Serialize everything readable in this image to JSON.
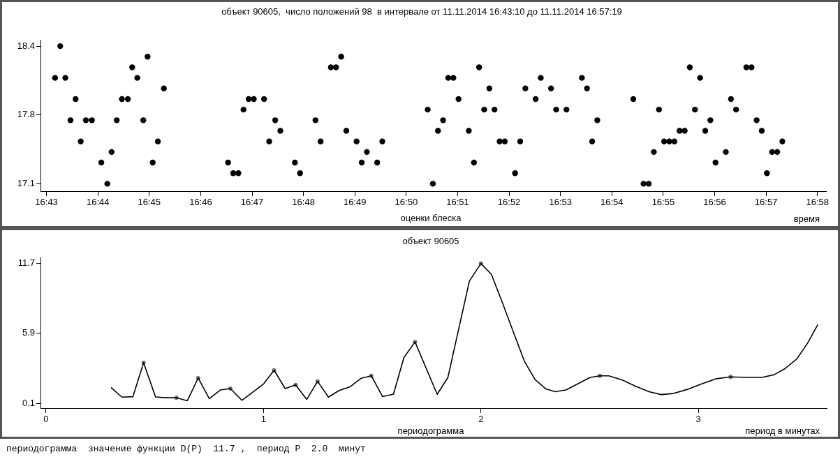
{
  "chart_data": [
    {
      "type": "scatter",
      "title": "объект 90605,  число положений 98  в интервале от 11.11.2014 16:43:10 до 11.11.2014 16:57:19",
      "xlabel": "время",
      "annotations": [
        "оценки блеска"
      ],
      "color": "#000000",
      "marker": "circle",
      "x": [
        "2014-11-11T16:43:10",
        "2014-11-11T16:43:16",
        "2014-11-11T16:43:22",
        "2014-11-11T16:43:28",
        "2014-11-11T16:43:34",
        "2014-11-11T16:43:40",
        "2014-11-11T16:43:46",
        "2014-11-11T16:43:53",
        "2014-11-11T16:44:04",
        "2014-11-11T16:44:11",
        "2014-11-11T16:44:16",
        "2014-11-11T16:44:22",
        "2014-11-11T16:44:28",
        "2014-11-11T16:44:35",
        "2014-11-11T16:44:40",
        "2014-11-11T16:44:46",
        "2014-11-11T16:44:53",
        "2014-11-11T16:44:58",
        "2014-11-11T16:45:04",
        "2014-11-11T16:45:10",
        "2014-11-11T16:45:17",
        "2014-11-11T16:46:32",
        "2014-11-11T16:46:38",
        "2014-11-11T16:46:44",
        "2014-11-11T16:46:50",
        "2014-11-11T16:46:56",
        "2014-11-11T16:47:02",
        "2014-11-11T16:47:14",
        "2014-11-11T16:47:20",
        "2014-11-11T16:47:27",
        "2014-11-11T16:47:33",
        "2014-11-11T16:47:50",
        "2014-11-11T16:47:56",
        "2014-11-11T16:48:14",
        "2014-11-11T16:48:20",
        "2014-11-11T16:48:32",
        "2014-11-11T16:48:38",
        "2014-11-11T16:48:44",
        "2014-11-11T16:48:50",
        "2014-11-11T16:49:02",
        "2014-11-11T16:49:08",
        "2014-11-11T16:49:14",
        "2014-11-11T16:49:26",
        "2014-11-11T16:49:32",
        "2014-11-11T16:50:25",
        "2014-11-11T16:50:31",
        "2014-11-11T16:50:37",
        "2014-11-11T16:50:43",
        "2014-11-11T16:50:49",
        "2014-11-11T16:50:55",
        "2014-11-11T16:51:01",
        "2014-11-11T16:51:13",
        "2014-11-11T16:51:19",
        "2014-11-11T16:51:25",
        "2014-11-11T16:51:31",
        "2014-11-11T16:51:37",
        "2014-11-11T16:51:43",
        "2014-11-11T16:51:49",
        "2014-11-11T16:51:55",
        "2014-11-11T16:52:07",
        "2014-11-11T16:52:13",
        "2014-11-11T16:52:19",
        "2014-11-11T16:52:31",
        "2014-11-11T16:52:37",
        "2014-11-11T16:52:49",
        "2014-11-11T16:52:55",
        "2014-11-11T16:53:07",
        "2014-11-11T16:53:25",
        "2014-11-11T16:53:31",
        "2014-11-11T16:53:37",
        "2014-11-11T16:53:43",
        "2014-11-11T16:54:25",
        "2014-11-11T16:54:37",
        "2014-11-11T16:54:43",
        "2014-11-11T16:54:49",
        "2014-11-11T16:54:55",
        "2014-11-11T16:55:01",
        "2014-11-11T16:55:07",
        "2014-11-11T16:55:13",
        "2014-11-11T16:55:19",
        "2014-11-11T16:55:25",
        "2014-11-11T16:55:31",
        "2014-11-11T16:55:37",
        "2014-11-11T16:55:43",
        "2014-11-11T16:55:49",
        "2014-11-11T16:55:55",
        "2014-11-11T16:56:01",
        "2014-11-11T16:56:13",
        "2014-11-11T16:56:19",
        "2014-11-11T16:56:25",
        "2014-11-11T16:56:37",
        "2014-11-11T16:56:43",
        "2014-11-11T16:56:49",
        "2014-11-11T16:56:55",
        "2014-11-11T16:57:01",
        "2014-11-11T16:57:07",
        "2014-11-11T16:57:13",
        "2014-11-11T16:57:19"
      ],
      "values": [
        18.1,
        18.4,
        18.1,
        17.7,
        17.9,
        17.5,
        17.7,
        17.7,
        17.3,
        17.1,
        17.4,
        17.7,
        17.9,
        17.9,
        18.2,
        18.1,
        17.7,
        18.3,
        17.3,
        17.5,
        18.0,
        17.3,
        17.2,
        17.2,
        17.8,
        17.9,
        17.9,
        17.9,
        17.5,
        17.7,
        17.6,
        17.3,
        17.2,
        17.7,
        17.5,
        18.2,
        18.2,
        18.3,
        17.6,
        17.5,
        17.3,
        17.4,
        17.3,
        17.5,
        17.8,
        17.1,
        17.6,
        17.7,
        18.1,
        18.1,
        17.9,
        17.6,
        17.3,
        18.2,
        17.8,
        18.0,
        17.8,
        17.5,
        17.5,
        17.2,
        17.5,
        18.0,
        17.9,
        18.1,
        18.0,
        17.8,
        17.8,
        18.1,
        18.0,
        17.5,
        17.7,
        17.9,
        17.1,
        17.1,
        17.4,
        17.8,
        17.5,
        17.5,
        17.5,
        17.6,
        17.6,
        18.2,
        17.8,
        18.1,
        17.6,
        17.7,
        17.3,
        17.4,
        17.9,
        17.8,
        18.2,
        18.2,
        17.7,
        17.6,
        17.2,
        17.4,
        17.4,
        17.5
      ],
      "xlim": [
        "2014-11-11T16:42:53",
        "2014-11-11T16:58:10"
      ],
      "xticks": [
        {
          "value": "2014-11-11T16:43",
          "label": "16:43"
        },
        {
          "value": "2014-11-11T16:44",
          "label": "16:44"
        },
        {
          "value": "2014-11-11T16:45",
          "label": "16:45"
        },
        {
          "value": "2014-11-11T16:46",
          "label": "16:46"
        },
        {
          "value": "2014-11-11T16:47",
          "label": "16:47"
        },
        {
          "value": "2014-11-11T16:48",
          "label": "16:48"
        },
        {
          "value": "2014-11-11T16:49",
          "label": "16:49"
        },
        {
          "value": "2014-11-11T16:50",
          "label": "16:50"
        },
        {
          "value": "2014-11-11T16:51",
          "label": "16:51"
        },
        {
          "value": "2014-11-11T16:52",
          "label": "16:52"
        },
        {
          "value": "2014-11-11T16:53",
          "label": "16:53"
        },
        {
          "value": "2014-11-11T16:54",
          "label": "16:54"
        },
        {
          "value": "2014-11-11T16:55",
          "label": "16:55"
        },
        {
          "value": "2014-11-11T16:56",
          "label": "16:56"
        },
        {
          "value": "2014-11-11T16:57",
          "label": "16:57"
        },
        {
          "value": "2014-11-11T16:58",
          "label": "16:58"
        }
      ],
      "ylim": [
        17.03,
        18.46
      ],
      "yticks": [
        17.1,
        {
          "value": 17.75,
          "label": "17.8"
        },
        18.4
      ]
    },
    {
      "type": "line",
      "title": "объект 90605",
      "xlabel": "период в минутах",
      "annotations": [
        "периодограмма",
        "периодограмма  значение функции D(P)  11.7 ,  период P  2.0  минут"
      ],
      "series": [
        {
          "type": "line",
          "color": "#000000",
          "marker": "none",
          "x": [
            0.301,
            0.349,
            0.4,
            0.449,
            0.504,
            0.548,
            0.6,
            0.65,
            0.7,
            0.751,
            0.802,
            0.848,
            0.901,
            1.001,
            1.049,
            1.1,
            1.148,
            1.199,
            1.249,
            1.299,
            1.348,
            1.398,
            1.449,
            1.496,
            1.548,
            1.598,
            1.646,
            1.697,
            1.799,
            1.848,
            1.947,
            2.0,
            2.048,
            2.095,
            2.145,
            2.2,
            2.249,
            2.299,
            2.342,
            2.391,
            2.453,
            2.502,
            2.547,
            2.588,
            2.65,
            2.712,
            2.773,
            2.829,
            2.885,
            2.947,
            3.009,
            3.083,
            3.148,
            3.219,
            3.293,
            3.348,
            3.398,
            3.453,
            3.502,
            3.548
          ],
          "values": [
            1.39,
            0.61,
            0.65,
            3.46,
            0.63,
            0.56,
            0.56,
            0.31,
            2.19,
            0.49,
            1.2,
            1.32,
            0.35,
            1.71,
            2.84,
            1.32,
            1.62,
            0.42,
            1.92,
            0.61,
            1.16,
            1.46,
            2.17,
            2.38,
            0.65,
            0.86,
            3.9,
            5.19,
            0.84,
            2.23,
            10.24,
            11.7,
            10.8,
            8.63,
            6.21,
            3.59,
            2.07,
            1.29,
            1.06,
            1.2,
            1.78,
            2.25,
            2.38,
            2.38,
            2.03,
            1.51,
            1.06,
            0.82,
            0.91,
            1.24,
            1.67,
            2.14,
            2.29,
            2.25,
            2.25,
            2.47,
            2.97,
            3.79,
            5.09,
            6.59
          ]
        },
        {
          "type": "scatter",
          "color": "#6e6e6e",
          "marker": "circle",
          "x": [
            0.449,
            0.6,
            0.7,
            0.848,
            1.049,
            1.148,
            1.249,
            1.496,
            1.697,
            2.0,
            2.547,
            3.148
          ],
          "values": [
            3.46,
            0.56,
            2.19,
            1.32,
            2.84,
            1.62,
            1.92,
            2.38,
            5.19,
            11.7,
            2.38,
            2.29
          ]
        }
      ],
      "xlim": [
        -0.025,
        3.59
      ],
      "xticks": [
        0,
        1,
        2,
        3
      ],
      "ylim": [
        -0.3,
        12.2
      ],
      "yticks": [
        0.1,
        5.9,
        11.7
      ]
    }
  ]
}
